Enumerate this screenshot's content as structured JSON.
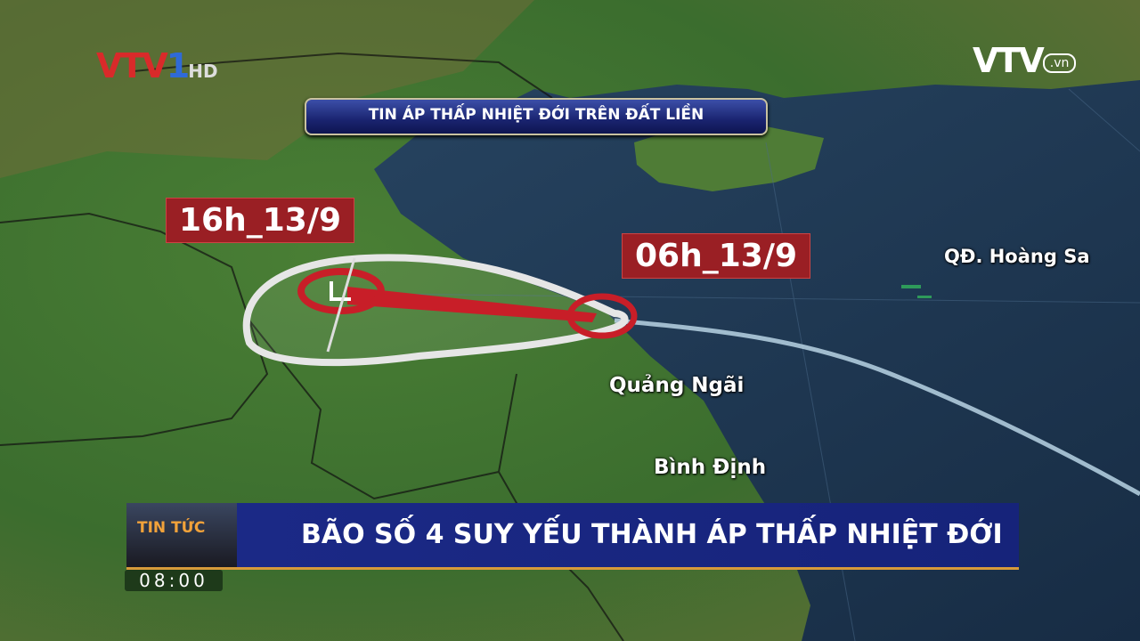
{
  "channel": {
    "logo_text": "VTV1",
    "hd": "HD",
    "site_logo": "VTV",
    "site_suffix": ".vn"
  },
  "top_banner": "TIN ÁP THẤP NHIỆT ĐỚI TRÊN ĐẤT LIỀN",
  "map": {
    "time_labels": [
      "16h_13/9",
      "06h_13/9"
    ],
    "places": [
      "QĐ. Hoàng Sa",
      "Quảng Ngãi",
      "Bình Định"
    ],
    "storm_symbol": "tropical-depression-icon",
    "colors": {
      "land": "#3f7a32",
      "sea": "#1f3a55",
      "track": "#cc1f2a",
      "cone": "#e8e8e8"
    }
  },
  "lower_third": {
    "program": "TIN TỨC",
    "headline": "BÃO SỐ 4 SUY YẾU THÀNH ÁP THẤP NHIỆT ĐỚI",
    "clock": "08:00"
  }
}
